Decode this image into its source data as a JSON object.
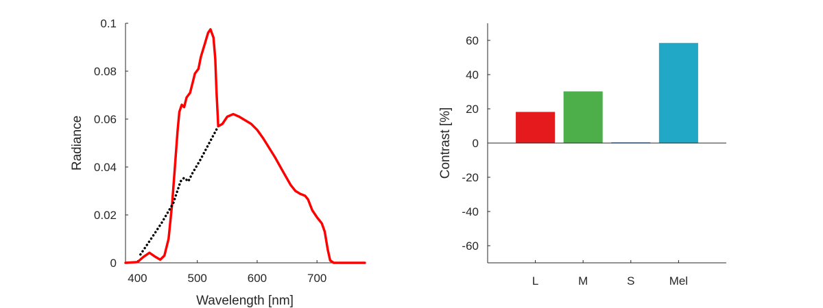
{
  "chart_data": [
    {
      "type": "line",
      "xlabel": "Wavelength [nm]",
      "ylabel": "Radiance",
      "xlim": [
        380,
        780
      ],
      "ylim": [
        0,
        0.1
      ],
      "xticks": [
        400,
        500,
        600,
        700
      ],
      "yticks": [
        0,
        0.02,
        0.04,
        0.06,
        0.08,
        0.1
      ],
      "xtick_labels": [
        "400",
        "500",
        "600",
        "700"
      ],
      "ytick_labels": [
        "0",
        "0.02",
        "0.04",
        "0.06",
        "0.08",
        "0.1"
      ],
      "grid": false,
      "series": [
        {
          "style": "solid",
          "color": "#ff0000",
          "points": [
            [
              380,
              0
            ],
            [
              400,
              0.0003
            ],
            [
              410,
              0.0025
            ],
            [
              420,
              0.0042
            ],
            [
              430,
              0.0025
            ],
            [
              438,
              0.0013
            ],
            [
              445,
              0.003
            ],
            [
              452,
              0.01
            ],
            [
              458,
              0.025
            ],
            [
              462,
              0.038
            ],
            [
              467,
              0.055
            ],
            [
              470,
              0.063
            ],
            [
              474,
              0.066
            ],
            [
              478,
              0.065
            ],
            [
              482,
              0.069
            ],
            [
              488,
              0.071
            ],
            [
              492,
              0.075
            ],
            [
              496,
              0.079
            ],
            [
              502,
              0.081
            ],
            [
              506,
              0.086
            ],
            [
              512,
              0.091
            ],
            [
              518,
              0.096
            ],
            [
              522,
              0.0975
            ],
            [
              527,
              0.094
            ],
            [
              530,
              0.085
            ],
            [
              532,
              0.072
            ],
            [
              535,
              0.057
            ],
            [
              542,
              0.058
            ],
            [
              550,
              0.061
            ],
            [
              560,
              0.0621
            ],
            [
              570,
              0.061
            ],
            [
              580,
              0.0595
            ],
            [
              590,
              0.058
            ],
            [
              600,
              0.0555
            ],
            [
              610,
              0.052
            ],
            [
              620,
              0.048
            ],
            [
              630,
              0.044
            ],
            [
              640,
              0.0395
            ],
            [
              648,
              0.036
            ],
            [
              656,
              0.0325
            ],
            [
              664,
              0.03
            ],
            [
              672,
              0.0288
            ],
            [
              680,
              0.028
            ],
            [
              685,
              0.0265
            ],
            [
              692,
              0.022
            ],
            [
              700,
              0.019
            ],
            [
              708,
              0.0165
            ],
            [
              713,
              0.013
            ],
            [
              718,
              0.0055
            ],
            [
              722,
              0.001
            ],
            [
              728,
              0
            ],
            [
              780,
              0
            ]
          ]
        },
        {
          "style": "dotted",
          "color": "#000000",
          "points": [
            [
              405,
              0.0035
            ],
            [
              420,
              0.009
            ],
            [
              440,
              0.0165
            ],
            [
              460,
              0.025
            ],
            [
              472,
              0.034
            ],
            [
              478,
              0.0355
            ],
            [
              485,
              0.034
            ],
            [
              492,
              0.0375
            ],
            [
              505,
              0.043
            ],
            [
              520,
              0.05
            ],
            [
              535,
              0.057
            ]
          ]
        }
      ]
    },
    {
      "type": "bar",
      "ylabel": "Contrast [%]",
      "xlabel": "",
      "categories": [
        "L",
        "M",
        "S",
        "Mel"
      ],
      "values": [
        18.2,
        30.2,
        0.4,
        58.5
      ],
      "colors": [
        "#e41a1c",
        "#4daf4a",
        "#3a74b8",
        "#21a8c7"
      ],
      "ylim": [
        -70,
        70
      ],
      "yticks": [
        -60,
        -40,
        -20,
        0,
        20,
        40,
        60
      ],
      "ytick_labels": [
        "-60",
        "-40",
        "-20",
        "0",
        "20",
        "40",
        "60"
      ],
      "grid": false
    }
  ]
}
